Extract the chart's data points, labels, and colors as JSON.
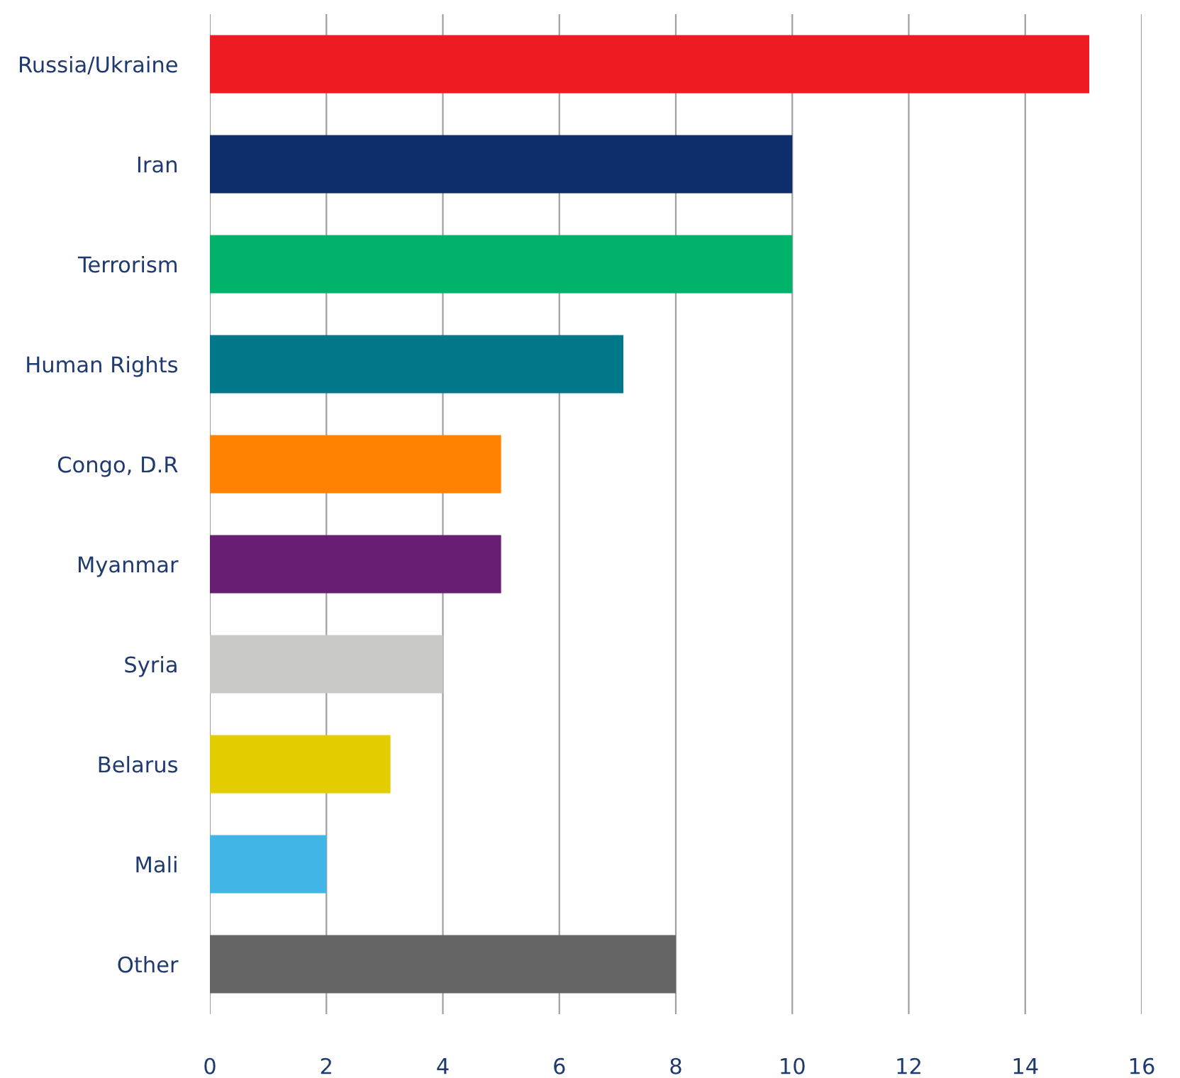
{
  "chart_data": {
    "type": "bar",
    "orientation": "horizontal",
    "categories": [
      "Russia/Ukraine",
      "Iran",
      "Terrorism",
      "Human Rights",
      "Congo, D.R",
      "Myanmar",
      "Syria",
      "Belarus",
      "Mali",
      "Other"
    ],
    "values": [
      15.1,
      10,
      10,
      7.1,
      5,
      5,
      4,
      3.1,
      2,
      8
    ],
    "colors": [
      "#ed1c24",
      "#0f2d6b",
      "#00b26a",
      "#00788a",
      "#ff8200",
      "#681e73",
      "#c8c9c7",
      "#e1cd00",
      "#41b6e6",
      "#646464"
    ],
    "xlim": [
      0,
      16
    ],
    "xticks": [
      0,
      2,
      4,
      6,
      8,
      10,
      12,
      14,
      16
    ],
    "grid": "x",
    "legend": false
  }
}
